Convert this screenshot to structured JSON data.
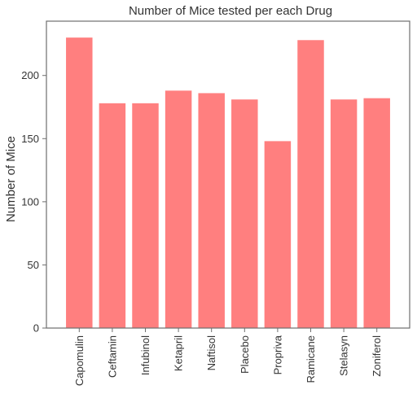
{
  "chart_data": {
    "type": "bar",
    "title": "Number of Mice tested per each Drug",
    "xlabel": "",
    "ylabel": "Number of Mice",
    "categories": [
      "Capomulin",
      "Ceftamin",
      "Infubinol",
      "Ketapril",
      "Naftisol",
      "Placebo",
      "Propriva",
      "Ramicane",
      "Stelasyn",
      "Zoniferol"
    ],
    "values": [
      230,
      178,
      178,
      188,
      186,
      181,
      148,
      228,
      181,
      182
    ],
    "ylim": [
      0,
      243
    ],
    "yticks": [
      0,
      50,
      100,
      150,
      200
    ],
    "grid": false,
    "bar_color": "#ff7f7f",
    "frame_color": "#6e6e6e"
  }
}
